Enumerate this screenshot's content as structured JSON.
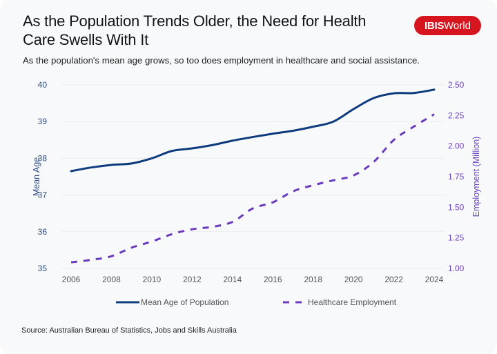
{
  "header": {
    "title": "As the Population Trends Older, the Need for Health Care Swells With It",
    "subtitle": "As the population's mean age grows, so too does employment in healthcare and social assistance.",
    "logo_bold": "IBIS",
    "logo_regular": "World"
  },
  "colors": {
    "mean_age": "#0d3b7e",
    "employment": "#6a3bbd",
    "logo_bg": "#d6151e",
    "grid": "#ececee"
  },
  "source": "Source: Australian Bureau of Statistics, Jobs and Skills Australia",
  "chart_data": {
    "type": "line",
    "title": "As the Population Trends Older, the Need for Health Care Swells With It",
    "x": [
      2006,
      2007,
      2008,
      2009,
      2010,
      2011,
      2012,
      2013,
      2014,
      2015,
      2016,
      2017,
      2018,
      2019,
      2020,
      2021,
      2022,
      2023,
      2024
    ],
    "xticks": [
      "2006",
      "2008",
      "2010",
      "2012",
      "2014",
      "2016",
      "2018",
      "2020",
      "2022",
      "2024"
    ],
    "xlabel": "",
    "series": [
      {
        "name": "Mean Age of Population",
        "axis": "left",
        "style": "solid",
        "values": [
          37.65,
          37.75,
          37.82,
          37.86,
          38.0,
          38.2,
          38.27,
          38.36,
          38.48,
          38.58,
          38.67,
          38.75,
          38.86,
          39.0,
          39.34,
          39.64,
          39.77,
          39.78,
          39.87
        ]
      },
      {
        "name": "Healthcare Employment",
        "axis": "right",
        "style": "dashed",
        "values": [
          1.05,
          1.07,
          1.1,
          1.17,
          1.22,
          1.28,
          1.32,
          1.34,
          1.38,
          1.49,
          1.54,
          1.63,
          1.68,
          1.72,
          1.76,
          1.87,
          2.05,
          2.16,
          2.26
        ]
      }
    ],
    "y_left": {
      "label": "Mean Age",
      "ylim": [
        35,
        40
      ],
      "ticks": [
        "35",
        "36",
        "37",
        "38",
        "39",
        "40"
      ]
    },
    "y_right": {
      "label": "Employment (Million)",
      "ylim": [
        1.0,
        2.5
      ],
      "ticks": [
        "1.00",
        "1.25",
        "1.50",
        "1.75",
        "2.00",
        "2.25",
        "2.50"
      ]
    },
    "grid": true,
    "legend": {
      "placement": "bottom",
      "entries": [
        "Mean Age of Population",
        "Healthcare Employment"
      ]
    }
  }
}
